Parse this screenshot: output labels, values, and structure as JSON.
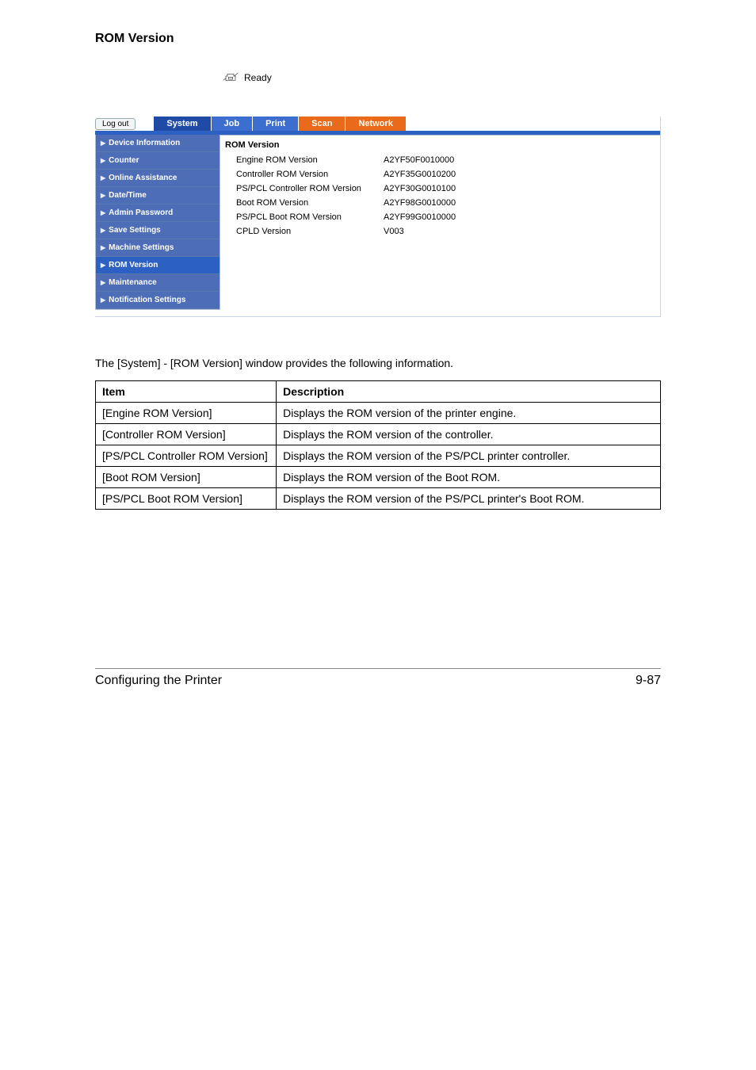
{
  "heading": "ROM Version",
  "ready_label": "Ready",
  "logout_label": "Log out",
  "tabs": {
    "colors": {
      "active": "#1f4aa6",
      "inactive_blue": "#3b6ecf",
      "orange": "#e86a1a"
    },
    "items": [
      {
        "label": "System",
        "bg": "#1f4aa6"
      },
      {
        "label": "Job",
        "bg": "#3b6ecf"
      },
      {
        "label": "Print",
        "bg": "#3b6ecf"
      },
      {
        "label": "Scan",
        "bg": "#e86a1a"
      },
      {
        "label": "Network",
        "bg": "#e86a1a"
      }
    ]
  },
  "sidebar": {
    "default_bg": "#4d6db6",
    "selected_bg": "#2c61c3",
    "items": [
      {
        "label": "Device Information",
        "selected": false
      },
      {
        "label": "Counter",
        "selected": false
      },
      {
        "label": "Online Assistance",
        "selected": false
      },
      {
        "label": "Date/Time",
        "selected": false
      },
      {
        "label": "Admin Password",
        "selected": false
      },
      {
        "label": "Save Settings",
        "selected": false
      },
      {
        "label": "Machine Settings",
        "selected": false
      },
      {
        "label": "ROM Version",
        "selected": true
      },
      {
        "label": "Maintenance",
        "selected": false
      },
      {
        "label": "Notification Settings",
        "selected": false
      }
    ]
  },
  "content": {
    "title": "ROM Version",
    "rows": [
      {
        "key": "Engine ROM Version",
        "value": "A2YF50F0010000"
      },
      {
        "key": "Controller ROM Version",
        "value": "A2YF35G0010200"
      },
      {
        "key": "PS/PCL Controller ROM Version",
        "value": "A2YF30G0010100"
      },
      {
        "key": "Boot ROM Version",
        "value": "A2YF98G0010000"
      },
      {
        "key": "PS/PCL Boot ROM Version",
        "value": "A2YF99G0010000"
      },
      {
        "key": "CPLD Version",
        "value": "V003"
      }
    ]
  },
  "doc_paragraph": "The [System] - [ROM Version] window provides the following information.",
  "doc_table": {
    "headers": [
      "Item",
      "Description"
    ],
    "rows": [
      [
        "[Engine ROM Version]",
        "Displays the ROM version of the printer engine."
      ],
      [
        "[Controller ROM Version]",
        "Displays the ROM version of the controller."
      ],
      [
        "[PS/PCL Controller ROM Version]",
        "Displays the ROM version of the PS/PCL printer controller."
      ],
      [
        "[Boot ROM Version]",
        "Displays the ROM version of the Boot ROM."
      ],
      [
        "[PS/PCL Boot ROM Version]",
        "Displays the ROM version of the PS/PCL printer's Boot ROM."
      ]
    ]
  },
  "footer": {
    "left": "Configuring the Printer",
    "right": "9-87"
  }
}
